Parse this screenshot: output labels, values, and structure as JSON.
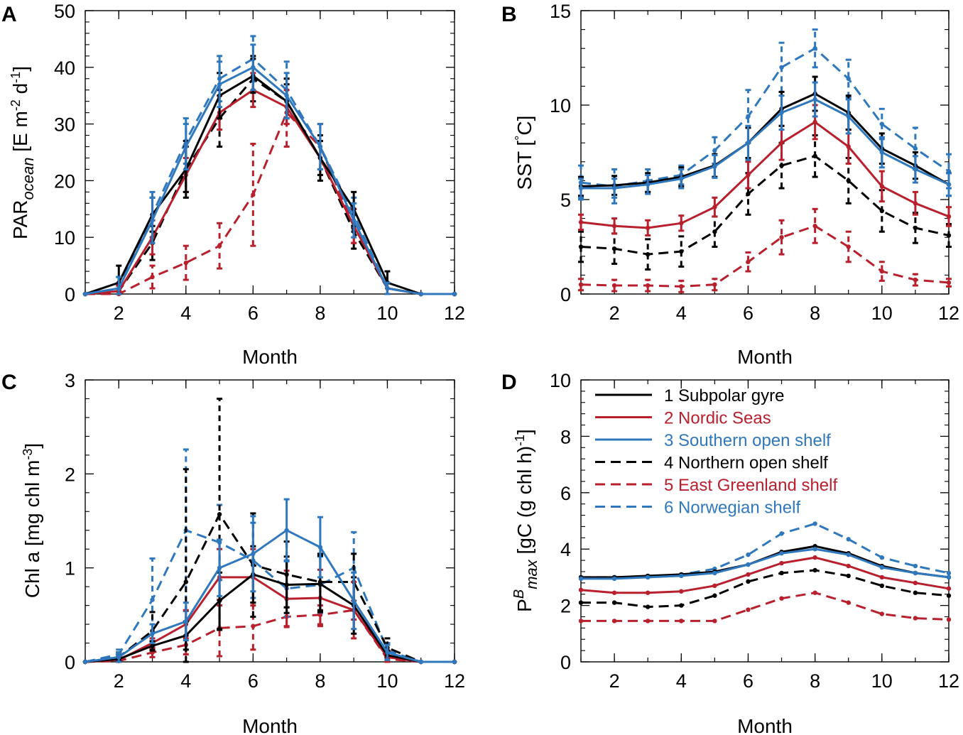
{
  "figure": {
    "series_styles": [
      {
        "id": 1,
        "name": "Subpolar gyre",
        "color": "#000000",
        "dash": "solid"
      },
      {
        "id": 2,
        "name": "Nordic Seas",
        "color": "#b8202e",
        "dash": "solid"
      },
      {
        "id": 3,
        "name": "Southern open shelf",
        "color": "#2f78bd",
        "dash": "solid"
      },
      {
        "id": 4,
        "name": "Northern open shelf",
        "color": "#000000",
        "dash": "dashed"
      },
      {
        "id": 5,
        "name": "East Greenland shelf",
        "color": "#b8202e",
        "dash": "dashed"
      },
      {
        "id": 6,
        "name": "Norwegian shelf",
        "color": "#2f78bd",
        "dash": "dashed"
      }
    ]
  },
  "chart_data": [
    {
      "panel": "A",
      "type": "line",
      "xlabel": "Month",
      "ylabel": "PAR_ocean [E m^-2 d^-1]",
      "x": [
        1,
        2,
        3,
        4,
        5,
        6,
        7,
        8,
        9,
        10,
        11,
        12
      ],
      "xlim": [
        1,
        12
      ],
      "ylim": [
        0,
        50
      ],
      "xticks": [
        2,
        4,
        6,
        8,
        10,
        12
      ],
      "yticks": [
        0,
        10,
        20,
        30,
        40,
        50
      ],
      "series": [
        {
          "name": "1 Subpolar gyre",
          "values": [
            0,
            2,
            14,
            22,
            35,
            38.5,
            34,
            24,
            15,
            2,
            0,
            0
          ],
          "errors": [
            0,
            3,
            3,
            4,
            4,
            3,
            3,
            3,
            3,
            2,
            0,
            0
          ]
        },
        {
          "name": "2 Nordic Seas",
          "values": [
            0,
            0.5,
            10,
            21,
            32,
            36,
            33,
            24,
            12,
            1,
            0,
            0
          ],
          "errors": [
            0,
            1,
            3,
            3,
            3,
            3,
            3,
            3,
            3,
            1,
            0,
            0
          ]
        },
        {
          "name": "3 Southern open shelf",
          "values": [
            0,
            1,
            13,
            26,
            37,
            40,
            35,
            26,
            13,
            1,
            0,
            0
          ],
          "errors": [
            0,
            2,
            4,
            4,
            4,
            4,
            4,
            4,
            3,
            1,
            0,
            0
          ]
        },
        {
          "name": "4 Northern open shelf",
          "values": [
            0,
            0.5,
            9,
            22,
            31,
            38,
            34,
            24,
            11,
            1,
            0,
            0
          ],
          "errors": [
            0,
            1,
            3,
            5,
            5,
            4,
            4,
            4,
            3,
            1,
            0,
            0
          ]
        },
        {
          "name": "5 East Greenland shelf",
          "values": [
            0,
            0,
            3,
            5.5,
            8.5,
            17.5,
            32,
            26,
            12,
            1,
            0,
            0
          ],
          "errors": [
            0,
            0.5,
            2,
            3,
            4,
            9,
            6,
            4,
            3,
            1,
            0,
            0
          ]
        },
        {
          "name": "6 Norwegian shelf",
          "values": [
            0,
            1,
            14,
            27,
            38,
            41.5,
            36,
            26,
            14,
            1,
            0,
            0
          ],
          "errors": [
            0,
            2,
            4,
            4,
            4,
            4,
            5,
            4,
            3,
            1,
            0,
            0
          ]
        }
      ]
    },
    {
      "panel": "B",
      "type": "line",
      "xlabel": "Month",
      "ylabel": "SST [°C]",
      "x": [
        1,
        2,
        3,
        4,
        5,
        6,
        7,
        8,
        9,
        10,
        11,
        12
      ],
      "xlim": [
        1,
        12
      ],
      "ylim": [
        0,
        15
      ],
      "xticks": [
        2,
        4,
        6,
        8,
        10,
        12
      ],
      "yticks": [
        0,
        5,
        10,
        15
      ],
      "series": [
        {
          "name": "1 Subpolar gyre",
          "values": [
            5.7,
            5.75,
            5.9,
            6.2,
            6.8,
            8.0,
            9.8,
            10.6,
            9.6,
            7.7,
            6.8,
            5.8
          ],
          "errors": [
            0.5,
            0.5,
            0.5,
            0.5,
            0.6,
            0.8,
            0.9,
            0.9,
            0.9,
            0.8,
            0.7,
            0.6
          ]
        },
        {
          "name": "2 Nordic Seas",
          "values": [
            3.8,
            3.6,
            3.5,
            3.75,
            4.6,
            6.3,
            8.0,
            9.1,
            7.8,
            5.7,
            4.8,
            4.1
          ],
          "errors": [
            0.4,
            0.4,
            0.4,
            0.4,
            0.5,
            0.7,
            0.9,
            0.9,
            0.9,
            0.8,
            0.6,
            0.5
          ]
        },
        {
          "name": "3 Southern open shelf",
          "values": [
            5.6,
            5.6,
            5.8,
            6.1,
            6.75,
            8.0,
            9.6,
            10.3,
            9.4,
            7.5,
            6.6,
            5.8
          ],
          "errors": [
            0.5,
            0.5,
            0.5,
            0.5,
            0.6,
            0.9,
            0.9,
            0.9,
            0.9,
            0.8,
            0.7,
            0.6
          ]
        },
        {
          "name": "4 Northern open shelf",
          "values": [
            2.5,
            2.4,
            2.1,
            2.25,
            3.3,
            5.3,
            6.8,
            7.3,
            6.0,
            4.4,
            3.5,
            3.1
          ],
          "errors": [
            0.8,
            0.8,
            0.8,
            0.8,
            0.8,
            1.1,
            1.2,
            1.1,
            1.2,
            1.1,
            0.8,
            0.6
          ]
        },
        {
          "name": "5 East Greenland shelf",
          "values": [
            0.5,
            0.45,
            0.45,
            0.4,
            0.5,
            1.7,
            3.0,
            3.6,
            2.5,
            1.2,
            0.75,
            0.6
          ],
          "errors": [
            0.3,
            0.3,
            0.3,
            0.3,
            0.3,
            0.5,
            0.9,
            0.9,
            0.8,
            0.5,
            0.3,
            0.2
          ]
        },
        {
          "name": "6 Norwegian shelf",
          "values": [
            5.9,
            5.7,
            6.0,
            6.3,
            7.6,
            9.4,
            12.0,
            13.0,
            11.4,
            9.0,
            7.7,
            6.5
          ],
          "errors": [
            0.9,
            0.9,
            0.6,
            0.5,
            0.7,
            1.4,
            1.3,
            1.0,
            1.0,
            0.8,
            1.1,
            0.9
          ]
        }
      ]
    },
    {
      "panel": "C",
      "type": "line",
      "xlabel": "Month",
      "ylabel": "Chl a [mg chl m^-3]",
      "x": [
        1,
        2,
        3,
        4,
        5,
        6,
        7,
        8,
        9,
        10,
        11,
        12
      ],
      "xlim": [
        1,
        12
      ],
      "ylim": [
        0,
        3
      ],
      "xticks": [
        2,
        4,
        6,
        8,
        10,
        12
      ],
      "yticks": [
        0,
        1,
        2,
        3
      ],
      "series": [
        {
          "name": "1 Subpolar gyre",
          "values": [
            0,
            0.03,
            0.17,
            0.28,
            0.65,
            0.93,
            0.82,
            0.83,
            0.6,
            0.07,
            0,
            0
          ],
          "errors": [
            0,
            0.02,
            0.05,
            0.15,
            0.3,
            0.3,
            0.3,
            0.3,
            0.3,
            0.05,
            0,
            0
          ]
        },
        {
          "name": "2 Nordic Seas",
          "values": [
            0,
            0.02,
            0.2,
            0.4,
            0.9,
            0.9,
            0.67,
            0.68,
            0.55,
            0.05,
            0,
            0
          ],
          "errors": [
            0,
            0.02,
            0.05,
            0.15,
            0.3,
            0.3,
            0.3,
            0.3,
            0.3,
            0.05,
            0,
            0
          ]
        },
        {
          "name": "3 Southern open shelf",
          "values": [
            0,
            0.05,
            0.3,
            0.43,
            1.0,
            1.15,
            1.4,
            1.22,
            0.65,
            0.1,
            0,
            0
          ],
          "errors": [
            0,
            0.05,
            0.1,
            0.2,
            0.3,
            0.4,
            0.33,
            0.32,
            0.3,
            0.08,
            0,
            0
          ]
        },
        {
          "name": "4 Northern open shelf",
          "values": [
            0,
            0.05,
            0.33,
            0.85,
            1.57,
            1.03,
            0.93,
            0.85,
            0.85,
            0.15,
            0,
            0
          ],
          "errors": [
            0,
            0.05,
            0.2,
            1.2,
            1.23,
            0.55,
            0.35,
            0.3,
            0.3,
            0.1,
            0,
            0
          ]
        },
        {
          "name": "5 East Greenland shelf",
          "values": [
            0,
            0.01,
            0.1,
            0.18,
            0.36,
            0.38,
            0.48,
            0.5,
            0.55,
            0.03,
            0,
            0
          ],
          "errors": [
            0,
            0.01,
            0.05,
            0.1,
            0.3,
            0.25,
            0.1,
            0.1,
            0.1,
            0.03,
            0,
            0
          ]
        },
        {
          "name": "6 Norwegian shelf",
          "values": [
            0,
            0.08,
            0.66,
            1.4,
            1.27,
            1.08,
            0.78,
            0.82,
            1.0,
            0.12,
            0,
            0
          ],
          "errors": [
            0,
            0.05,
            0.44,
            0.86,
            0.4,
            0.4,
            0.3,
            0.3,
            0.38,
            0.08,
            0,
            0
          ]
        }
      ]
    },
    {
      "panel": "D",
      "type": "line",
      "xlabel": "Month",
      "ylabel": "P^B_max [gC (g chl h)^-1]",
      "x": [
        1,
        2,
        3,
        4,
        5,
        6,
        7,
        8,
        9,
        10,
        11,
        12
      ],
      "xlim": [
        1,
        12
      ],
      "ylim": [
        0,
        10
      ],
      "xticks": [
        2,
        4,
        6,
        8,
        10,
        12
      ],
      "yticks": [
        0,
        2,
        4,
        6,
        8,
        10
      ],
      "legend": [
        "1 Subpolar gyre",
        "2 Nordic Seas",
        "3 Southern open shelf",
        "4 Northern open shelf",
        "5 East Greenland shelf",
        "6 Norwegian shelf"
      ],
      "series": [
        {
          "name": "1 Subpolar gyre",
          "values": [
            3.0,
            3.0,
            3.05,
            3.1,
            3.2,
            3.45,
            3.9,
            4.1,
            3.85,
            3.4,
            3.15,
            3.0
          ]
        },
        {
          "name": "2 Nordic Seas",
          "values": [
            2.55,
            2.45,
            2.45,
            2.5,
            2.7,
            3.1,
            3.5,
            3.7,
            3.4,
            3.0,
            2.8,
            2.6
          ]
        },
        {
          "name": "3 Southern open shelf",
          "values": [
            2.95,
            2.95,
            3.0,
            3.05,
            3.15,
            3.45,
            3.85,
            4.0,
            3.8,
            3.35,
            3.15,
            3.0
          ]
        },
        {
          "name": "4 Northern open shelf",
          "values": [
            2.1,
            2.1,
            1.95,
            2.0,
            2.35,
            2.85,
            3.15,
            3.25,
            3.05,
            2.7,
            2.45,
            2.35
          ]
        },
        {
          "name": "5 East Greenland shelf",
          "values": [
            1.45,
            1.45,
            1.45,
            1.45,
            1.45,
            1.85,
            2.25,
            2.45,
            2.1,
            1.7,
            1.55,
            1.5
          ]
        },
        {
          "name": "6 Norwegian shelf",
          "values": [
            3.0,
            3.0,
            3.0,
            3.1,
            3.3,
            3.8,
            4.55,
            4.9,
            4.35,
            3.7,
            3.4,
            3.15
          ]
        }
      ]
    }
  ]
}
